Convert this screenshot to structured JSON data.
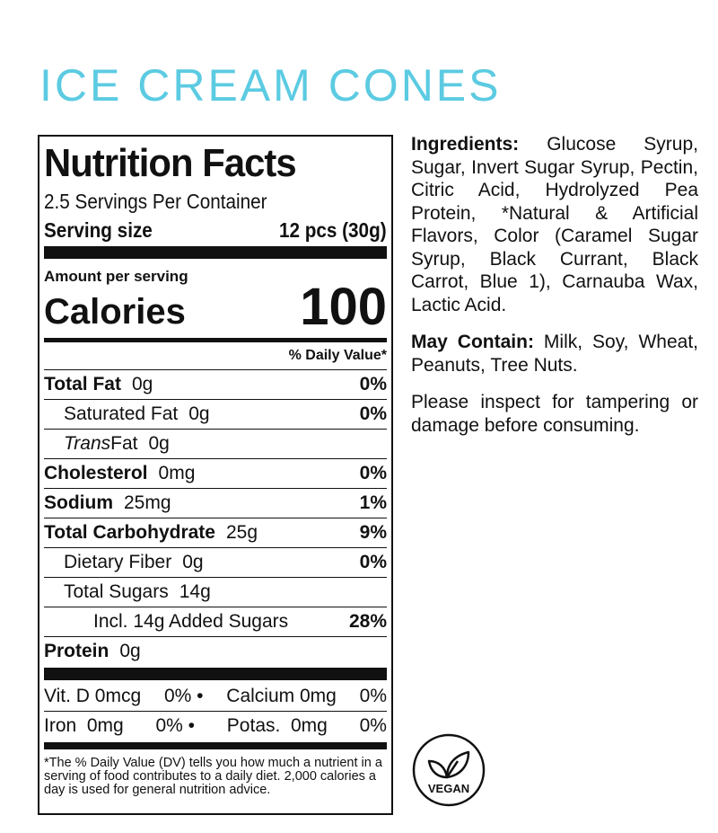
{
  "title": "ICE CREAM CONES",
  "label": {
    "heading": "Nutrition Facts",
    "servings_per_container": "2.5 Servings Per Container",
    "serving_size_label": "Serving size",
    "serving_size_value": "12 pcs (30g)",
    "amount_per_serving": "Amount per serving",
    "calories_label": "Calories",
    "calories_value": "100",
    "daily_value_header": "% Daily Value*",
    "nutrients": [
      {
        "name": "Total Fat",
        "amount": "0g",
        "dv": "0%"
      },
      {
        "name": "Saturated Fat",
        "amount": "0g",
        "dv": "0%"
      },
      {
        "name": "Trans",
        "name_suffix": " Fat",
        "amount": "0g",
        "dv": ""
      },
      {
        "name": "Cholesterol",
        "amount": "0mg",
        "dv": "0%"
      },
      {
        "name": "Sodium",
        "amount": "25mg",
        "dv": "1%"
      },
      {
        "name": "Total Carbohydrate",
        "amount": "25g",
        "dv": "9%"
      },
      {
        "name": "Dietary Fiber",
        "amount": "0g",
        "dv": "0%"
      },
      {
        "name": "Total Sugars",
        "amount": "14g",
        "dv": ""
      },
      {
        "name": "Incl. 14g Added Sugars",
        "amount": "",
        "dv": "28%"
      },
      {
        "name": "Protein",
        "amount": "0g",
        "dv": ""
      }
    ],
    "vitamins": [
      {
        "a": "Vit. D 0mcg",
        "a_dv": "0% •",
        "b": "Calcium 0mg",
        "b_dv": "0%"
      },
      {
        "a": "Iron  0mg",
        "a_dv": "0% •",
        "b": "Potas.  0mg",
        "b_dv": "0%"
      }
    ],
    "footnote": "*The % Daily Value (DV) tells you how much a nutrient in a serving of food contributes to a daily diet. 2,000 calories a day is used for general nutrition advice."
  },
  "ingredients_label": "Ingredients:",
  "ingredients": " Glucose Syrup, Sugar, Invert Sugar Syrup, Pectin, Citric Acid, Hydrolyzed Pea Protein, *Natural & Artificial Flavors, Color (Caramel Sugar Syrup, Black Currant, Black Carrot, Blue 1), Carnauba Wax, Lactic Acid.",
  "may_contain_label": "May Contain:",
  "may_contain": " Milk, Soy, Wheat, Peanuts, Tree Nuts.",
  "warning": "Please inspect for tampering or damage before consuming.",
  "badge": {
    "text": "VEGAN",
    "icon": "leaf-icon"
  },
  "colors": {
    "title": "#5ccbe2"
  }
}
